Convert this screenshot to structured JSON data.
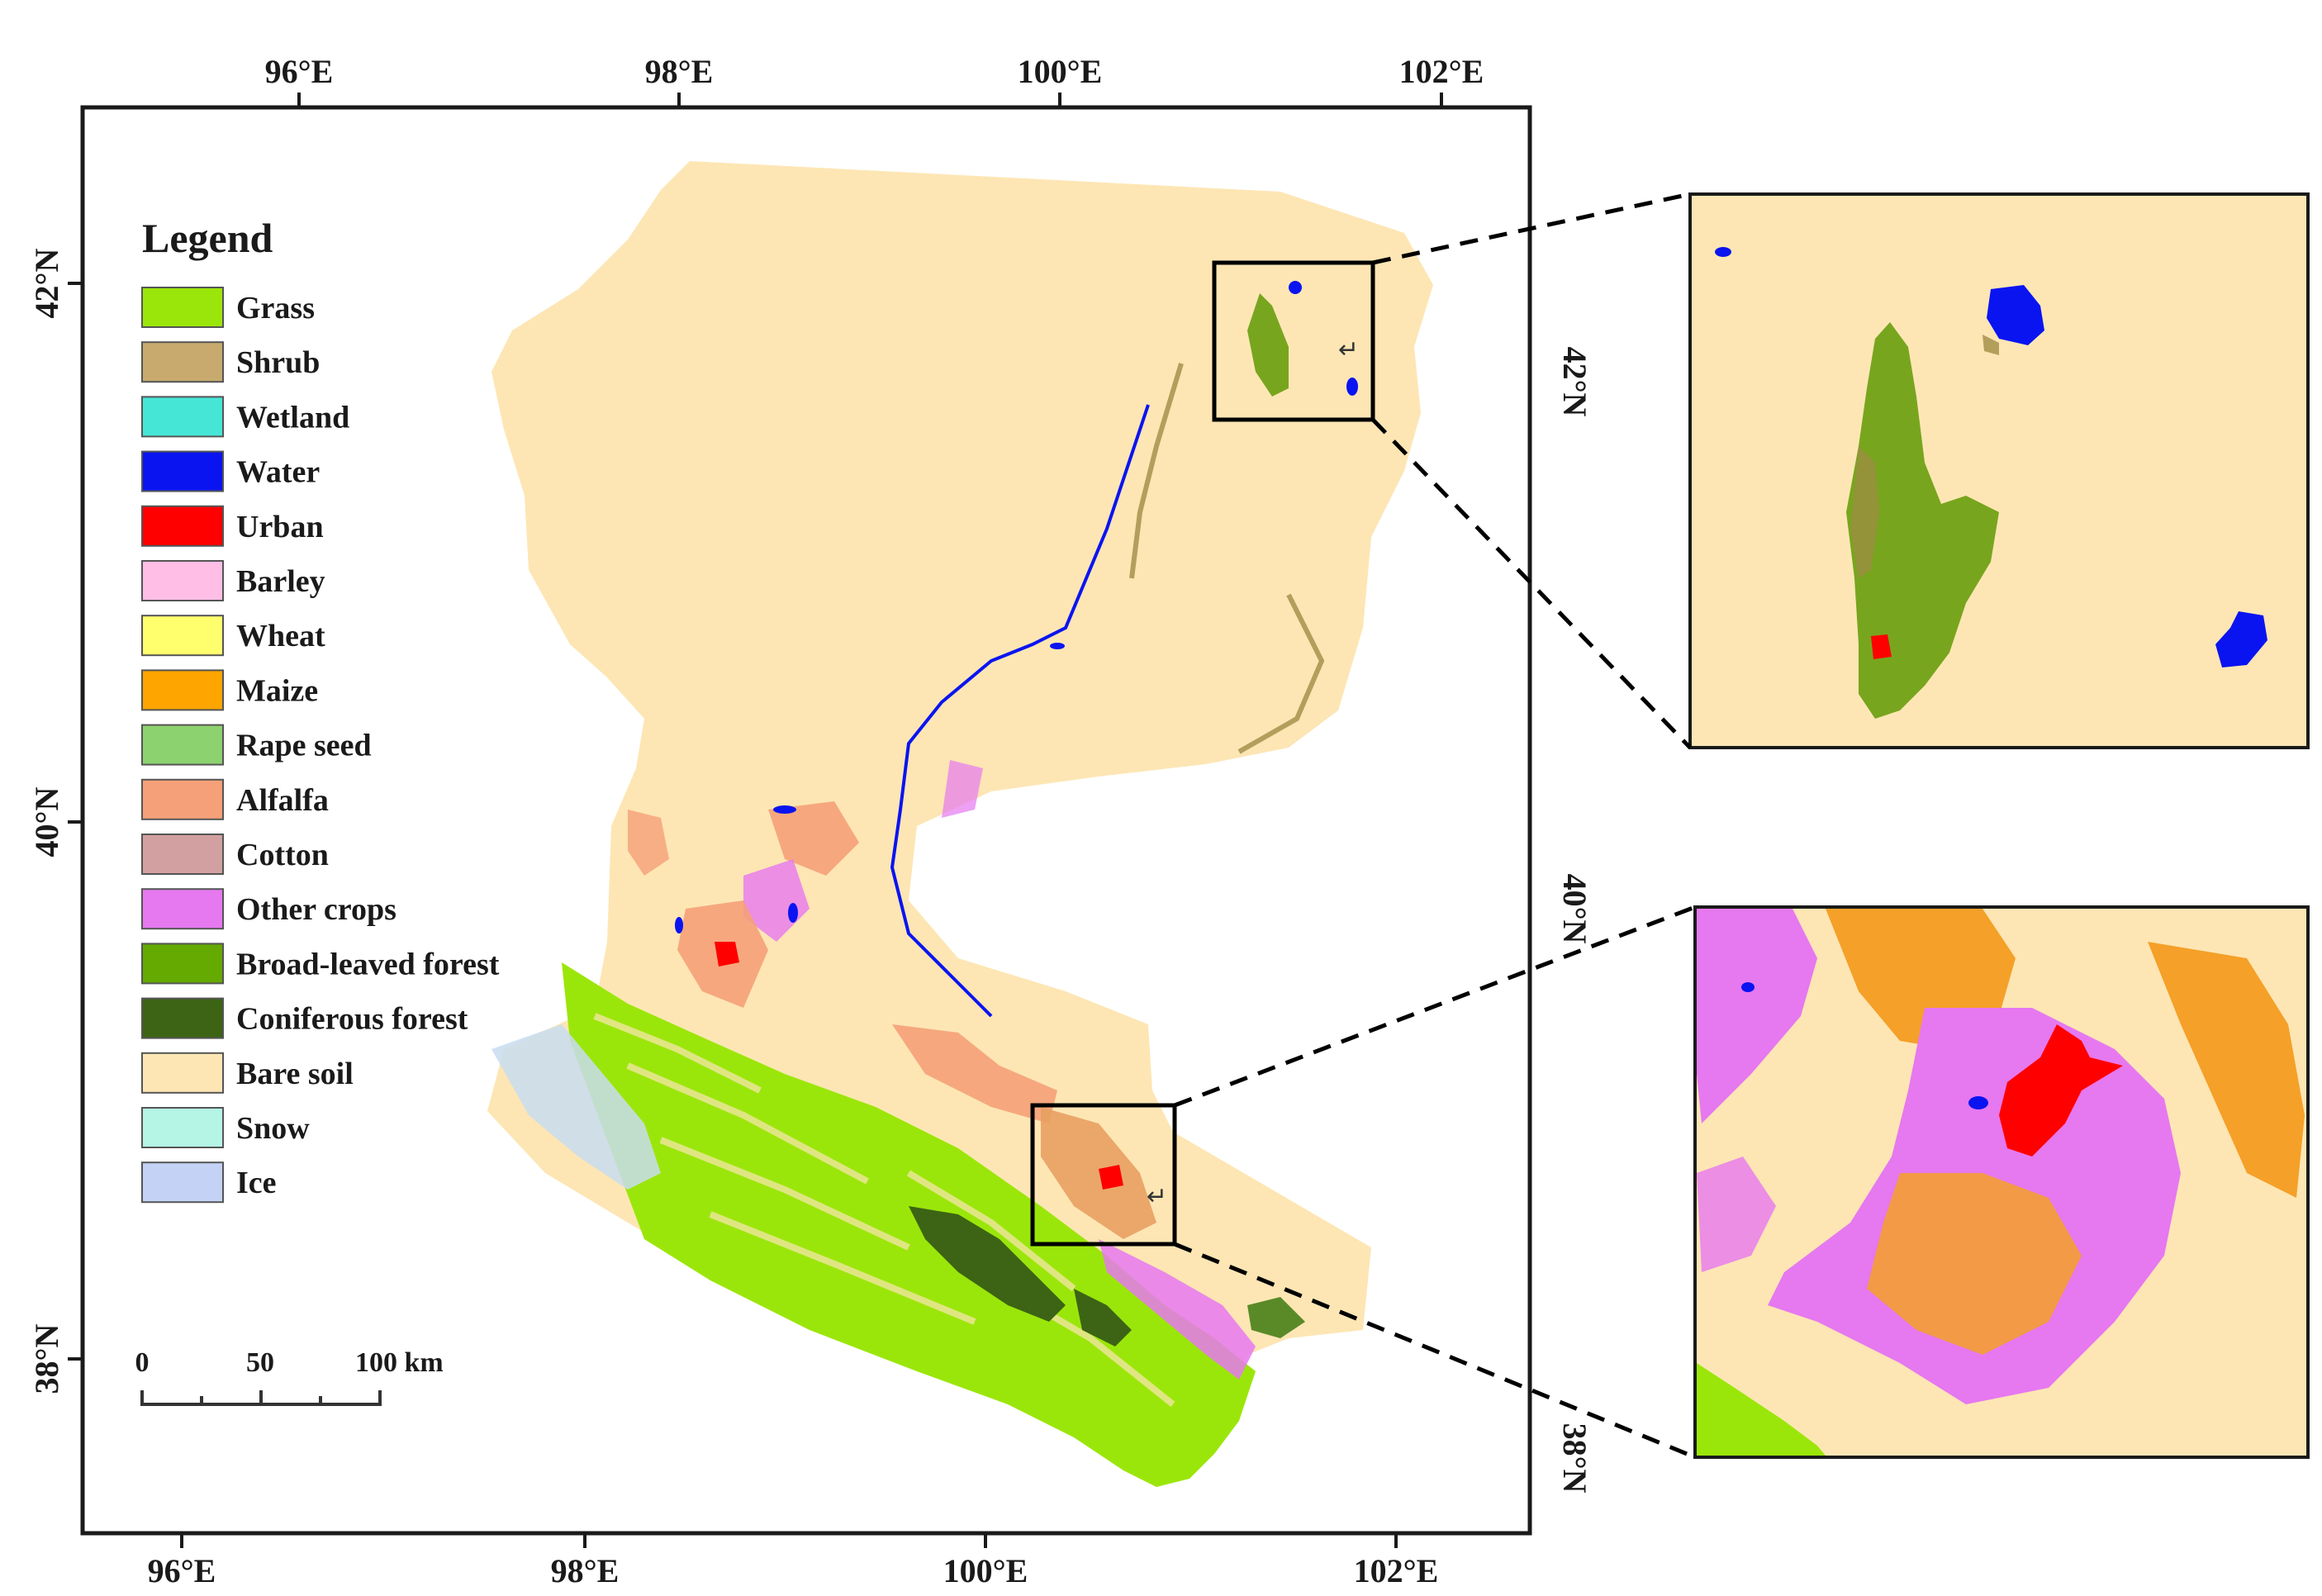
{
  "map": {
    "top_axis_labels": [
      "96°E",
      "98°E",
      "100°E",
      "102°E"
    ],
    "bottom_axis_labels": [
      "96°E",
      "98°E",
      "100°E",
      "102°E"
    ],
    "left_axis_labels": [
      "42°N",
      "40°N",
      "38°N"
    ],
    "inset_top_lat_label": "42°N",
    "inset_bottom_lat_labels": [
      "40°N",
      "38°N"
    ]
  },
  "legend": {
    "title": "Legend",
    "items": [
      {
        "label": "Grass",
        "color": "#9be60a"
      },
      {
        "label": "Shrub",
        "color": "#c8aa6e"
      },
      {
        "label": "Wetland",
        "color": "#46e6d7"
      },
      {
        "label": "Water",
        "color": "#0a14f0"
      },
      {
        "label": "Urban",
        "color": "#ff0000"
      },
      {
        "label": "Barley",
        "color": "#ffbee6"
      },
      {
        "label": "Wheat",
        "color": "#ffff6e"
      },
      {
        "label": "Maize",
        "color": "#ffa500"
      },
      {
        "label": "Rape seed",
        "color": "#8cd26e"
      },
      {
        "label": "Alfalfa",
        "color": "#f5a078"
      },
      {
        "label": "Cotton",
        "color": "#d2a0a0"
      },
      {
        "label": "Other crops",
        "color": "#e678f0"
      },
      {
        "label": "Broad-leaved forest",
        "color": "#64aa00"
      },
      {
        "label": "Coniferous forest",
        "color": "#3c6414"
      },
      {
        "label": "Bare soil",
        "color": "#fde6b4"
      },
      {
        "label": "Snow",
        "color": "#b4f5e6"
      },
      {
        "label": "Ice",
        "color": "#c3d2f5"
      }
    ]
  },
  "scale_bar": {
    "labels": [
      "0",
      "50",
      "100 km"
    ]
  },
  "colors": {
    "bare_soil": "#fde6b4",
    "grass": "#9be60a",
    "shrub": "#a08c46",
    "broadleaf": "#78a51e",
    "conifer": "#3c6414",
    "water": "#0a14f0",
    "urban": "#ff0000",
    "maize": "#f5a028",
    "other_crops": "#e678f0",
    "alfalfa": "#f5a078",
    "snow": "#c8dcf0"
  }
}
